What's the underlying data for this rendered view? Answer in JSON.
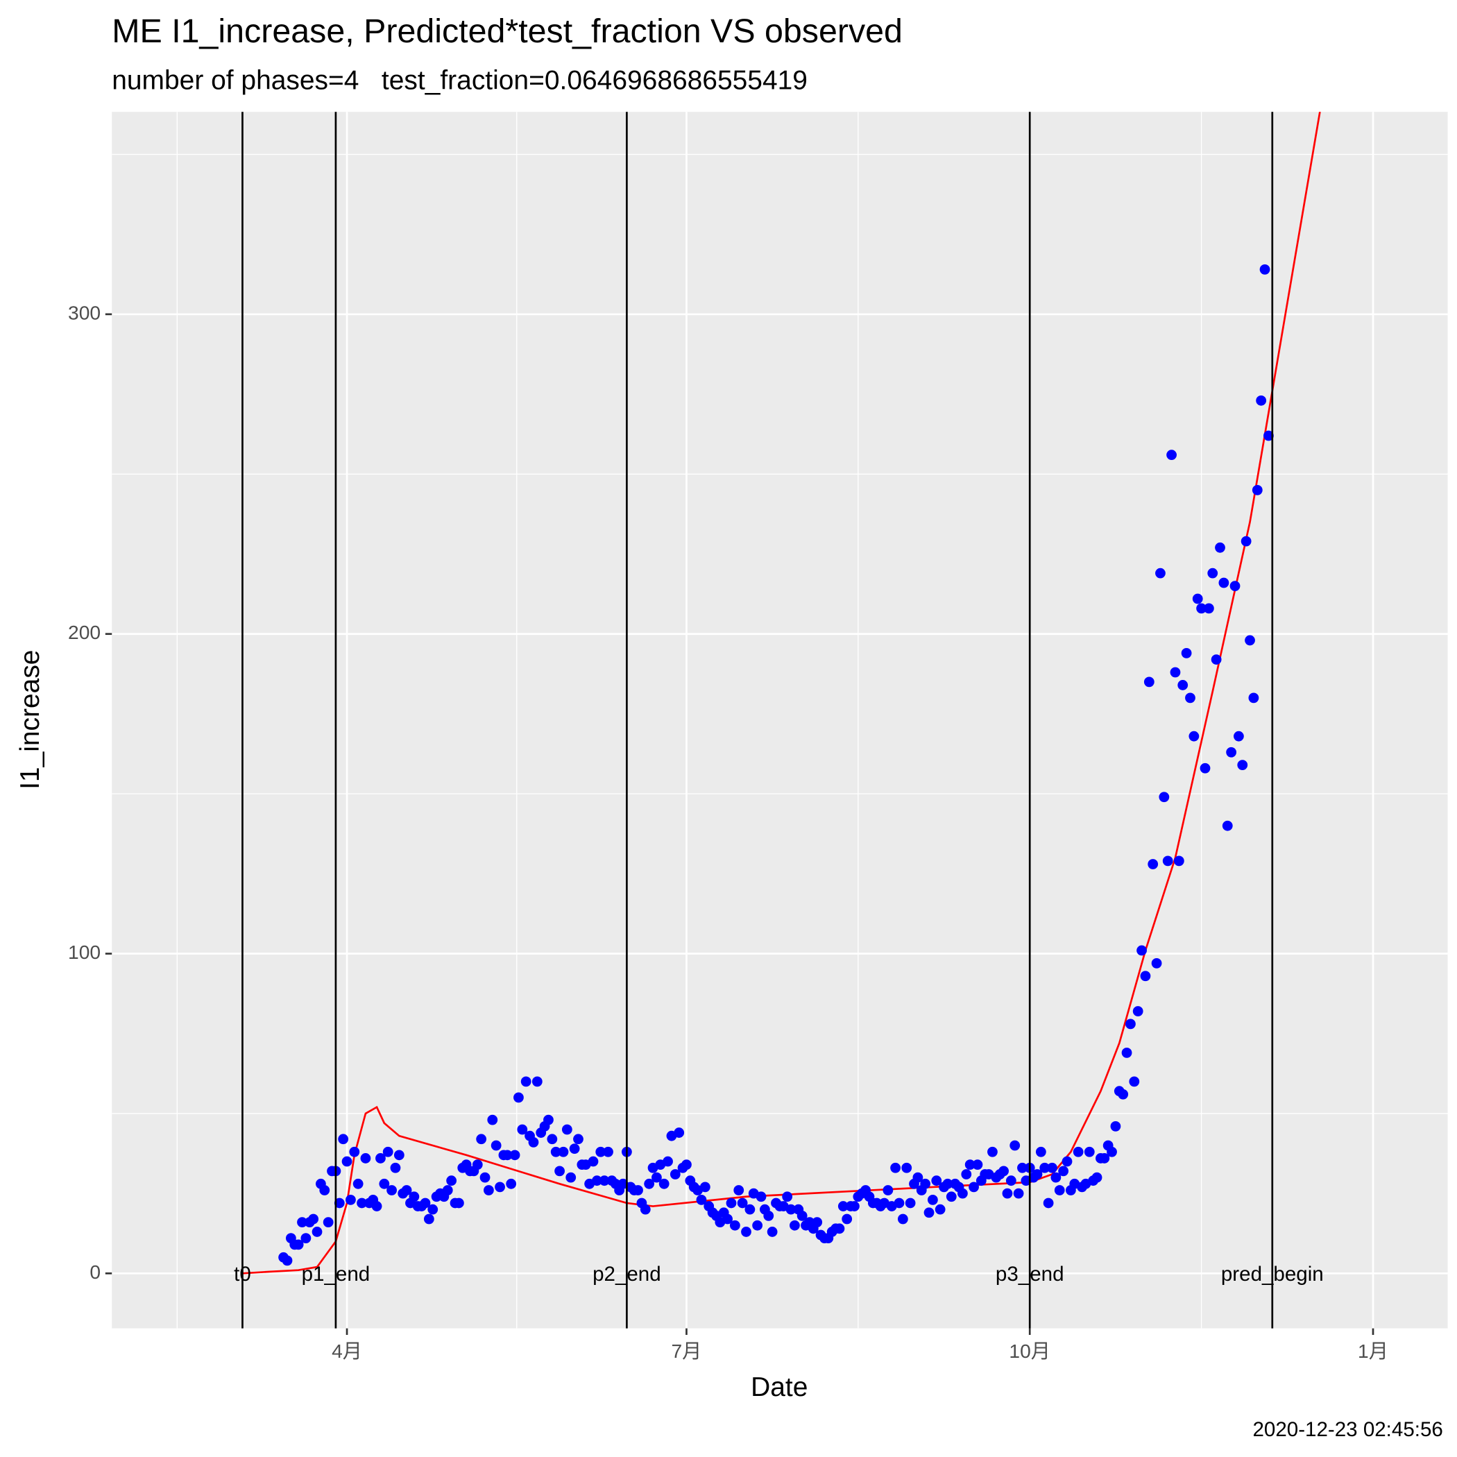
{
  "chart_data": {
    "type": "scatter",
    "title": "ME I1_increase, Predicted*test_fraction VS observed",
    "subtitle": "number of phases=4   test_fraction=0.0646968686555419",
    "x_label": "Date",
    "y_label": "I1_increase",
    "caption": "2020-12-23 02:45:56",
    "xlim": [
      28,
      386
    ],
    "xticks": [
      {
        "value": 91,
        "label": "4月"
      },
      {
        "value": 182,
        "label": "7月"
      },
      {
        "value": 274,
        "label": "10月"
      },
      {
        "value": 366,
        "label": "1月"
      }
    ],
    "ylim": [
      -17.2,
      363.3
    ],
    "yticks": [
      0,
      100,
      200,
      300
    ],
    "grid": true,
    "vlines": [
      {
        "x": 63,
        "label": "t0"
      },
      {
        "x": 88,
        "label": "p1_end"
      },
      {
        "x": 166,
        "label": "p2_end"
      },
      {
        "x": 274,
        "label": "p3_end"
      },
      {
        "x": 339,
        "label": "pred_begin"
      }
    ],
    "series": [
      {
        "type": "scatter",
        "color": "#0000ff",
        "x": [
          74,
          75,
          76,
          77,
          78,
          79,
          80,
          81,
          82,
          83,
          84,
          85,
          86,
          87,
          88,
          89,
          90,
          91,
          92,
          93,
          94,
          95,
          96,
          97,
          98,
          99,
          100,
          101,
          102,
          103,
          104,
          105,
          106,
          107,
          108,
          109,
          110,
          111,
          112,
          113,
          114,
          115,
          116,
          117,
          118,
          119,
          120,
          121,
          122,
          123,
          124,
          125,
          126,
          127,
          128,
          129,
          130,
          131,
          132,
          133,
          134,
          135,
          136,
          137,
          138,
          139,
          140,
          141,
          142,
          143,
          144,
          145,
          146,
          147,
          148,
          149,
          150,
          151,
          152,
          153,
          154,
          155,
          156,
          157,
          158,
          159,
          160,
          161,
          162,
          163,
          164,
          165,
          166,
          167,
          168,
          169,
          170,
          171,
          172,
          173,
          174,
          175,
          176,
          177,
          178,
          179,
          180,
          181,
          182,
          183,
          184,
          185,
          186,
          187,
          188,
          189,
          190,
          191,
          192,
          193,
          194,
          195,
          196,
          197,
          198,
          199,
          200,
          201,
          202,
          203,
          204,
          205,
          206,
          207,
          208,
          209,
          210,
          211,
          212,
          213,
          214,
          215,
          216,
          217,
          218,
          219,
          220,
          221,
          222,
          223,
          224,
          225,
          226,
          227,
          228,
          229,
          230,
          231,
          232,
          233,
          234,
          235,
          236,
          237,
          238,
          239,
          240,
          241,
          242,
          243,
          244,
          245,
          246,
          247,
          248,
          249,
          250,
          251,
          252,
          253,
          254,
          255,
          256,
          257,
          258,
          259,
          260,
          261,
          262,
          263,
          264,
          265,
          266,
          267,
          268,
          269,
          270,
          271,
          272,
          273,
          274,
          275,
          276,
          277,
          278,
          279,
          280,
          281,
          282,
          283,
          284,
          285,
          286,
          287,
          288,
          289,
          290,
          291,
          292,
          293,
          294,
          295,
          296,
          297,
          298,
          299,
          300,
          301,
          302,
          303,
          304,
          305,
          306,
          307,
          308,
          309,
          310,
          311,
          312,
          313,
          314,
          315,
          316,
          317,
          318,
          319,
          320,
          321,
          322,
          323,
          324,
          325,
          326,
          327,
          328,
          329,
          330,
          331,
          332,
          333,
          334,
          335,
          336,
          337,
          338
        ],
        "values": [
          5,
          4,
          11,
          9,
          9,
          16,
          11,
          16,
          17,
          13,
          28,
          26,
          16,
          32,
          32,
          22,
          42,
          35,
          23,
          38,
          28,
          22,
          36,
          22,
          23,
          21,
          36,
          28,
          38,
          26,
          33,
          37,
          25,
          26,
          22,
          24,
          21,
          21,
          22,
          17,
          20,
          24,
          25,
          24,
          26,
          29,
          22,
          22,
          33,
          34,
          32,
          32,
          34,
          42,
          30,
          26,
          48,
          40,
          27,
          37,
          37,
          28,
          37,
          55,
          45,
          60,
          43,
          41,
          60,
          44,
          46,
          48,
          42,
          38,
          32,
          38,
          45,
          30,
          39,
          42,
          34,
          34,
          28,
          35,
          29,
          38,
          29,
          38,
          29,
          28,
          26,
          28,
          38,
          27,
          26,
          26,
          22,
          20,
          28,
          33,
          30,
          34,
          28,
          35,
          43,
          31,
          44,
          33,
          34,
          29,
          27,
          26,
          23,
          27,
          21,
          19,
          18,
          16,
          19,
          17,
          22,
          15,
          26,
          22,
          13,
          20,
          25,
          15,
          24,
          20,
          18,
          13,
          22,
          21,
          21,
          24,
          20,
          15,
          20,
          18,
          15,
          16,
          14,
          16,
          12,
          11,
          11,
          13,
          14,
          14,
          21,
          17,
          21,
          21,
          24,
          25,
          26,
          24,
          22,
          22,
          21,
          22,
          26,
          21,
          33,
          22,
          17,
          33,
          22,
          28,
          30,
          26,
          28,
          19,
          23,
          29,
          20,
          27,
          28,
          24,
          28,
          27,
          25,
          31,
          34,
          27,
          34,
          29,
          31,
          31,
          38,
          30,
          31,
          32,
          25,
          29,
          40,
          25,
          33,
          29,
          33,
          30,
          31,
          38,
          33,
          22,
          33,
          30,
          26,
          32,
          35,
          26,
          28,
          38,
          27,
          28,
          38,
          29,
          30,
          36,
          36,
          40,
          38,
          46,
          57,
          56,
          69,
          78,
          60,
          82,
          101,
          93,
          185,
          128,
          97,
          219,
          149,
          129,
          256,
          188,
          129,
          184,
          194,
          180,
          168,
          211,
          208,
          158,
          208,
          219,
          192,
          227,
          216,
          140,
          163,
          215,
          168,
          159,
          229,
          198,
          180,
          245,
          273,
          314,
          262
        ]
      },
      {
        "type": "line",
        "color": "#ff0000",
        "x": [
          63,
          70,
          78,
          83,
          88,
          91,
          93,
          96,
          99,
          101,
          105,
          123,
          148,
          166,
          173,
          198,
          248,
          274,
          280,
          285,
          293,
          298,
          305,
          313,
          323,
          333,
          339,
          352
        ],
        "values": [
          0,
          0.5,
          1,
          2,
          10,
          22,
          37,
          50,
          52,
          47,
          43,
          37,
          28,
          22,
          21,
          24,
          27,
          28.5,
          31,
          38,
          57,
          72,
          101,
          130,
          182,
          235,
          276,
          365
        ]
      }
    ]
  }
}
